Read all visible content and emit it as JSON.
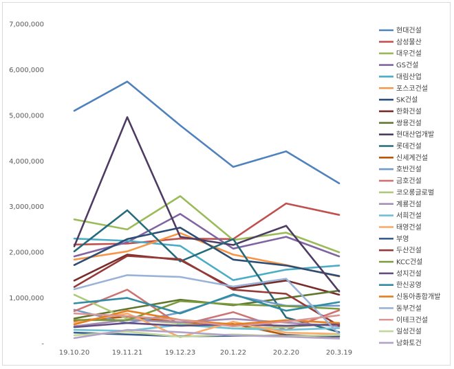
{
  "chart_data": {
    "type": "line",
    "title": "",
    "xlabel": "",
    "ylabel": "",
    "ylim": [
      0,
      7000000
    ],
    "yticks": [
      {
        "value": 0,
        "label": "-"
      },
      {
        "value": 1000000,
        "label": "1,000,000"
      },
      {
        "value": 2000000,
        "label": "2,000,000"
      },
      {
        "value": 3000000,
        "label": "3,000,000"
      },
      {
        "value": 4000000,
        "label": "4,000,000"
      },
      {
        "value": 5000000,
        "label": "5,000,000"
      },
      {
        "value": 6000000,
        "label": "6,000,000"
      },
      {
        "value": 7000000,
        "label": "7,000,000"
      }
    ],
    "categories": [
      "19.10.20",
      "19.11.21",
      "19.12.23",
      "20.1.22",
      "20.2.20",
      "20.3.19"
    ],
    "legend_position": "right",
    "series": [
      {
        "name": "현대건설",
        "color": "#4f81bd",
        "values": [
          5100000,
          5740000,
          4780000,
          3870000,
          4210000,
          3510000
        ]
      },
      {
        "name": "삼성물산",
        "color": "#c0504d",
        "values": [
          2170000,
          2190000,
          2300000,
          2290000,
          3070000,
          2820000
        ]
      },
      {
        "name": "대우건설",
        "color": "#9bbb59",
        "values": [
          2720000,
          2500000,
          3230000,
          2270000,
          2430000,
          2000000
        ]
      },
      {
        "name": "GS건설",
        "color": "#8064a2",
        "values": [
          1910000,
          2220000,
          2840000,
          2080000,
          2340000,
          1910000
        ]
      },
      {
        "name": "대림산업",
        "color": "#4bacc6",
        "values": [
          2300000,
          2250000,
          2140000,
          1390000,
          1620000,
          1710000
        ]
      },
      {
        "name": "포스코건설",
        "color": "#f79646",
        "values": [
          1840000,
          2020000,
          2420000,
          1950000,
          1720000,
          1470000
        ]
      },
      {
        "name": "SK건설",
        "color": "#2c4d75",
        "values": [
          1720000,
          2290000,
          2540000,
          1840000,
          1710000,
          1480000
        ]
      },
      {
        "name": "한화건설",
        "color": "#772c2a",
        "values": [
          1380000,
          1950000,
          1830000,
          1210000,
          1380000,
          1070000
        ]
      },
      {
        "name": "쌍용건설",
        "color": "#5f7530",
        "values": [
          550000,
          760000,
          960000,
          840000,
          1000000,
          1160000
        ]
      },
      {
        "name": "현대산업개발",
        "color": "#4d3b62",
        "values": [
          2130000,
          4960000,
          2340000,
          2160000,
          2580000,
          1140000
        ]
      },
      {
        "name": "롯데건설",
        "color": "#276a7c",
        "values": [
          2020000,
          2920000,
          1800000,
          2290000,
          570000,
          250000
        ]
      },
      {
        "name": "신세계건설",
        "color": "#b65708",
        "values": [
          500000,
          590000,
          460000,
          430000,
          190000,
          150000
        ]
      },
      {
        "name": "호반건설",
        "color": "#729aca",
        "values": [
          740000,
          450000,
          680000,
          1060000,
          830000,
          830000
        ]
      },
      {
        "name": "금호건설",
        "color": "#cd7371",
        "values": [
          710000,
          1180000,
          400000,
          690000,
          300000,
          730000
        ]
      },
      {
        "name": "코오롱글로벌",
        "color": "#afc97a",
        "values": [
          1070000,
          540000,
          440000,
          330000,
          360000,
          440000
        ]
      },
      {
        "name": "계룡건설",
        "color": "#a18bb4",
        "values": [
          380000,
          520000,
          470000,
          540000,
          460000,
          380000
        ]
      },
      {
        "name": "서희건설",
        "color": "#6ec0d5",
        "values": [
          300000,
          280000,
          410000,
          330000,
          300000,
          340000
        ]
      },
      {
        "name": "태영건설",
        "color": "#f9ab6b",
        "values": [
          460000,
          660000,
          140000,
          480000,
          240000,
          210000
        ]
      },
      {
        "name": "부영",
        "color": "#3a5f8e",
        "values": [
          240000,
          200000,
          160000,
          170000,
          180000,
          160000
        ]
      },
      {
        "name": "두산건설",
        "color": "#953a37",
        "values": [
          1240000,
          1920000,
          1850000,
          1180000,
          1090000,
          390000
        ]
      },
      {
        "name": "KCC건설",
        "color": "#7a9a3c",
        "values": [
          520000,
          510000,
          930000,
          860000,
          820000,
          760000
        ]
      },
      {
        "name": "성지건설",
        "color": "#644d80",
        "values": [
          360000,
          450000,
          390000,
          420000,
          390000,
          420000
        ]
      },
      {
        "name": "한신공영",
        "color": "#318ba2",
        "values": [
          880000,
          1000000,
          660000,
          1080000,
          720000,
          910000
        ]
      },
      {
        "name": "신동아종합개발",
        "color": "#e77e1e",
        "values": [
          420000,
          720000,
          520000,
          420000,
          510000,
          450000
        ]
      },
      {
        "name": "동부건설",
        "color": "#99b3d8",
        "values": [
          1190000,
          1500000,
          1460000,
          1250000,
          1420000,
          210000
        ]
      },
      {
        "name": "이테크건설",
        "color": "#d99694",
        "values": [
          660000,
          600000,
          520000,
          380000,
          480000,
          620000
        ]
      },
      {
        "name": "일성건설",
        "color": "#c3d69b",
        "values": [
          180000,
          260000,
          150000,
          200000,
          160000,
          190000
        ]
      },
      {
        "name": "남화토건",
        "color": "#b3a2c7",
        "values": [
          120000,
          300000,
          250000,
          180000,
          150000,
          110000
        ]
      }
    ]
  }
}
